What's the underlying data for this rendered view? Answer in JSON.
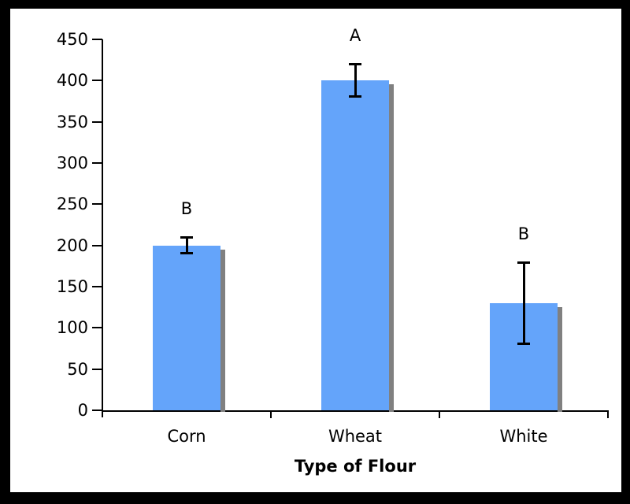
{
  "frame_color": "#000000",
  "background_color": "#ffffff",
  "chart_data": {
    "type": "bar",
    "title": "",
    "xlabel": "Type of Flour",
    "ylabel": "",
    "categories": [
      "Corn",
      "Wheat",
      "White"
    ],
    "values": [
      200,
      400,
      130
    ],
    "error_bars": [
      10,
      20,
      50
    ],
    "sig_letters": [
      "B",
      "A",
      "B"
    ],
    "ytick_labels": [
      "0",
      "50",
      "100",
      "150",
      "200",
      "250",
      "300",
      "350",
      "400",
      "450"
    ],
    "ylim": [
      0,
      450
    ],
    "ytick_step": 50,
    "grid": false,
    "legend": false,
    "bar_color": "#64A4FA",
    "bar_shadow_color": "#808080",
    "axis_color": "#000000",
    "text_color": "#000000"
  }
}
